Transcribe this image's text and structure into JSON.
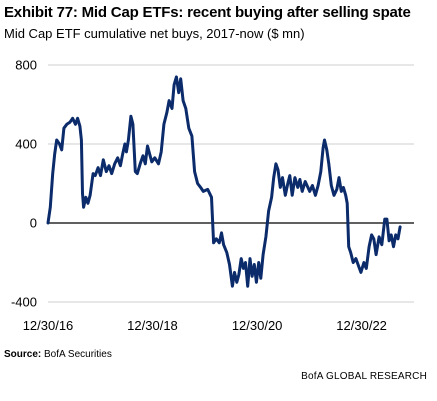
{
  "title": "Exhibit 77: Mid Cap ETFs: recent buying after selling spate",
  "subtitle": "Mid Cap ETF cumulative net buys, 2017-now ($ mn)",
  "source_label": "Source:",
  "source_text": "BofA Securities",
  "footer": "BofA GLOBAL RESEARCH",
  "colors": {
    "line": "#0b2b6b",
    "grid": "#cfcfcf",
    "zero": "#000000"
  },
  "chart_data": {
    "type": "line",
    "title": "Mid Cap ETF cumulative net buys, 2017-now ($ mn)",
    "xlabel": "",
    "ylabel": "",
    "ylim": [
      -400,
      800
    ],
    "yticks": [
      -400,
      0,
      400,
      800
    ],
    "xlim": [
      "2016-12-30",
      "2023-12-31"
    ],
    "xticks": [
      {
        "label": "12/30/16",
        "value": "2016-12-30"
      },
      {
        "label": "12/30/18",
        "value": "2018-12-30"
      },
      {
        "label": "12/30/20",
        "value": "2020-12-30"
      },
      {
        "label": "12/30/22",
        "value": "2022-12-30"
      }
    ],
    "grid": "horizontal",
    "legend": "none",
    "series": [
      {
        "points": [
          [
            "2016-12-30",
            0
          ],
          [
            "2017-01-15",
            80
          ],
          [
            "2017-02-01",
            250
          ],
          [
            "2017-02-15",
            350
          ],
          [
            "2017-03-01",
            420
          ],
          [
            "2017-03-20",
            400
          ],
          [
            "2017-04-05",
            370
          ],
          [
            "2017-04-20",
            480
          ],
          [
            "2017-05-10",
            500
          ],
          [
            "2017-06-01",
            510
          ],
          [
            "2017-06-20",
            530
          ],
          [
            "2017-07-10",
            500
          ],
          [
            "2017-07-25",
            530
          ],
          [
            "2017-08-10",
            490
          ],
          [
            "2017-08-20",
            420
          ],
          [
            "2017-08-28",
            150
          ],
          [
            "2017-09-05",
            80
          ],
          [
            "2017-09-20",
            130
          ],
          [
            "2017-10-05",
            100
          ],
          [
            "2017-10-20",
            140
          ],
          [
            "2017-11-10",
            250
          ],
          [
            "2017-11-25",
            240
          ],
          [
            "2017-12-15",
            280
          ],
          [
            "2018-01-01",
            240
          ],
          [
            "2018-01-20",
            320
          ],
          [
            "2018-02-10",
            260
          ],
          [
            "2018-03-01",
            290
          ],
          [
            "2018-03-20",
            250
          ],
          [
            "2018-04-10",
            300
          ],
          [
            "2018-05-01",
            330
          ],
          [
            "2018-05-20",
            290
          ],
          [
            "2018-06-05",
            350
          ],
          [
            "2018-06-20",
            400
          ],
          [
            "2018-07-01",
            360
          ],
          [
            "2018-07-15",
            420
          ],
          [
            "2018-08-01",
            540
          ],
          [
            "2018-08-15",
            500
          ],
          [
            "2018-09-01",
            260
          ],
          [
            "2018-09-15",
            250
          ],
          [
            "2018-10-05",
            300
          ],
          [
            "2018-10-25",
            340
          ],
          [
            "2018-11-10",
            300
          ],
          [
            "2018-11-25",
            390
          ],
          [
            "2018-12-10",
            350
          ],
          [
            "2018-12-25",
            310
          ],
          [
            "2019-01-15",
            330
          ],
          [
            "2019-02-10",
            300
          ],
          [
            "2019-03-01",
            360
          ],
          [
            "2019-03-20",
            500
          ],
          [
            "2019-04-10",
            560
          ],
          [
            "2019-04-25",
            620
          ],
          [
            "2019-05-15",
            580
          ],
          [
            "2019-05-30",
            700
          ],
          [
            "2019-06-15",
            740
          ],
          [
            "2019-07-01",
            660
          ],
          [
            "2019-07-15",
            730
          ],
          [
            "2019-08-01",
            620
          ],
          [
            "2019-08-20",
            580
          ],
          [
            "2019-09-10",
            480
          ],
          [
            "2019-10-01",
            440
          ],
          [
            "2019-10-20",
            260
          ],
          [
            "2019-11-10",
            200
          ],
          [
            "2019-12-01",
            180
          ],
          [
            "2019-12-20",
            160
          ],
          [
            "2020-01-20",
            170
          ],
          [
            "2020-02-15",
            130
          ],
          [
            "2020-03-01",
            -100
          ],
          [
            "2020-03-20",
            -80
          ],
          [
            "2020-04-10",
            -100
          ],
          [
            "2020-04-25",
            -50
          ],
          [
            "2020-05-10",
            -110
          ],
          [
            "2020-06-01",
            -150
          ],
          [
            "2020-06-20",
            -210
          ],
          [
            "2020-07-10",
            -320
          ],
          [
            "2020-07-25",
            -250
          ],
          [
            "2020-08-10",
            -300
          ],
          [
            "2020-08-25",
            -260
          ],
          [
            "2020-09-10",
            -180
          ],
          [
            "2020-09-25",
            -230
          ],
          [
            "2020-10-10",
            -200
          ],
          [
            "2020-10-25",
            -320
          ],
          [
            "2020-11-10",
            -180
          ],
          [
            "2020-11-25",
            -270
          ],
          [
            "2020-12-10",
            -210
          ],
          [
            "2020-12-25",
            -300
          ],
          [
            "2021-01-10",
            -200
          ],
          [
            "2021-01-25",
            -280
          ],
          [
            "2021-02-10",
            -160
          ],
          [
            "2021-03-01",
            -70
          ],
          [
            "2021-03-20",
            60
          ],
          [
            "2021-04-10",
            130
          ],
          [
            "2021-04-25",
            230
          ],
          [
            "2021-05-10",
            300
          ],
          [
            "2021-05-25",
            270
          ],
          [
            "2021-06-10",
            180
          ],
          [
            "2021-06-25",
            230
          ],
          [
            "2021-07-15",
            140
          ],
          [
            "2021-08-01",
            200
          ],
          [
            "2021-08-15",
            240
          ],
          [
            "2021-09-01",
            140
          ],
          [
            "2021-09-20",
            230
          ],
          [
            "2021-10-10",
            180
          ],
          [
            "2021-10-25",
            220
          ],
          [
            "2021-11-10",
            160
          ],
          [
            "2021-12-01",
            210
          ],
          [
            "2022-01-01",
            160
          ],
          [
            "2022-01-20",
            190
          ],
          [
            "2022-02-10",
            140
          ],
          [
            "2022-03-01",
            190
          ],
          [
            "2022-03-20",
            260
          ],
          [
            "2022-04-05",
            380
          ],
          [
            "2022-04-15",
            420
          ],
          [
            "2022-05-01",
            370
          ],
          [
            "2022-05-15",
            300
          ],
          [
            "2022-06-01",
            190
          ],
          [
            "2022-06-20",
            140
          ],
          [
            "2022-07-10",
            170
          ],
          [
            "2022-07-25",
            230
          ],
          [
            "2022-08-10",
            160
          ],
          [
            "2022-08-25",
            180
          ],
          [
            "2022-09-10",
            140
          ],
          [
            "2022-09-20",
            100
          ],
          [
            "2022-10-01",
            -120
          ],
          [
            "2022-10-15",
            -150
          ],
          [
            "2022-11-01",
            -200
          ],
          [
            "2022-11-20",
            -180
          ],
          [
            "2022-12-10",
            -220
          ],
          [
            "2022-12-25",
            -250
          ],
          [
            "2023-01-15",
            -200
          ],
          [
            "2023-02-01",
            -230
          ],
          [
            "2023-02-20",
            -120
          ],
          [
            "2023-03-10",
            -60
          ],
          [
            "2023-03-25",
            -80
          ],
          [
            "2023-04-10",
            -160
          ],
          [
            "2023-05-01",
            -70
          ],
          [
            "2023-05-20",
            -110
          ],
          [
            "2023-06-10",
            20
          ],
          [
            "2023-06-25",
            20
          ],
          [
            "2023-07-10",
            -90
          ],
          [
            "2023-07-25",
            -60
          ],
          [
            "2023-08-10",
            -120
          ],
          [
            "2023-08-25",
            -60
          ],
          [
            "2023-09-10",
            -80
          ],
          [
            "2023-09-25",
            -20
          ]
        ]
      }
    ]
  }
}
